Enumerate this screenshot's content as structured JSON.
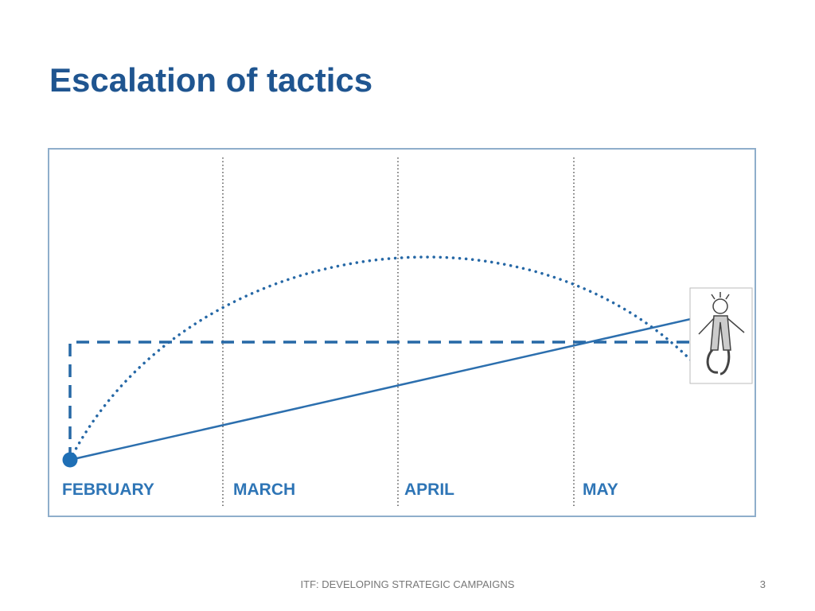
{
  "slide": {
    "title": "Escalation of tactics",
    "diagram": {
      "labels": [
        "FEBRUARY",
        "MARCH",
        "APRIL",
        "MAY"
      ]
    },
    "footer": {
      "text": "ITF: DEVELOPING STRATEGIC CAMPAIGNS",
      "page": "3"
    }
  }
}
